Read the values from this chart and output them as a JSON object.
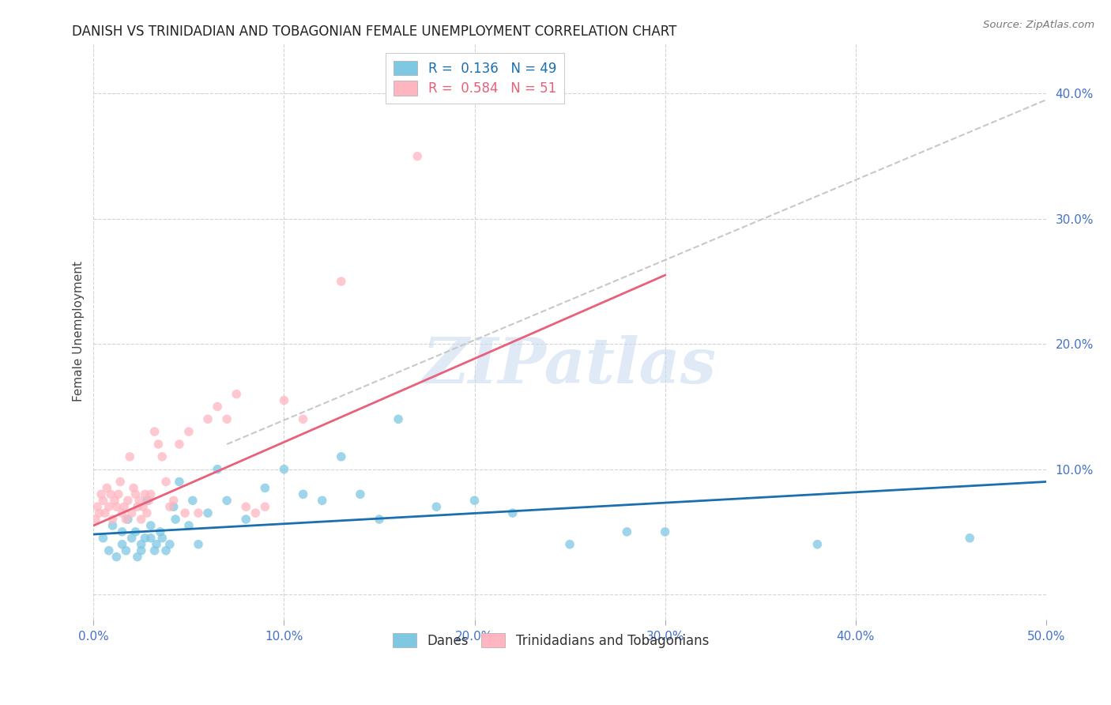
{
  "title": "DANISH VS TRINIDADIAN AND TOBAGONIAN FEMALE UNEMPLOYMENT CORRELATION CHART",
  "source": "Source: ZipAtlas.com",
  "ylabel": "Female Unemployment",
  "xlim": [
    0.0,
    0.5
  ],
  "ylim": [
    -0.02,
    0.44
  ],
  "xticks": [
    0.0,
    0.1,
    0.2,
    0.3,
    0.4,
    0.5
  ],
  "yticks": [
    0.0,
    0.1,
    0.2,
    0.3,
    0.4
  ],
  "xtick_labels": [
    "0.0%",
    "10.0%",
    "20.0%",
    "30.0%",
    "40.0%",
    "50.0%"
  ],
  "ytick_labels": [
    "",
    "10.0%",
    "20.0%",
    "30.0%",
    "40.0%"
  ],
  "blue_color": "#7ec8e3",
  "pink_color": "#ffb6c1",
  "blue_line_color": "#1a6faf",
  "pink_line_color": "#e8607a",
  "dash_line_color": "#c8c8c8",
  "danes_scatter_x": [
    0.005,
    0.008,
    0.01,
    0.012,
    0.015,
    0.015,
    0.017,
    0.018,
    0.02,
    0.022,
    0.023,
    0.025,
    0.025,
    0.027,
    0.028,
    0.03,
    0.03,
    0.032,
    0.033,
    0.035,
    0.036,
    0.038,
    0.04,
    0.042,
    0.043,
    0.045,
    0.05,
    0.052,
    0.055,
    0.06,
    0.065,
    0.07,
    0.08,
    0.09,
    0.1,
    0.11,
    0.12,
    0.13,
    0.14,
    0.15,
    0.16,
    0.18,
    0.2,
    0.22,
    0.25,
    0.28,
    0.3,
    0.38,
    0.46
  ],
  "danes_scatter_y": [
    0.045,
    0.035,
    0.055,
    0.03,
    0.05,
    0.04,
    0.035,
    0.06,
    0.045,
    0.05,
    0.03,
    0.04,
    0.035,
    0.045,
    0.075,
    0.045,
    0.055,
    0.035,
    0.04,
    0.05,
    0.045,
    0.035,
    0.04,
    0.07,
    0.06,
    0.09,
    0.055,
    0.075,
    0.04,
    0.065,
    0.1,
    0.075,
    0.06,
    0.085,
    0.1,
    0.08,
    0.075,
    0.11,
    0.08,
    0.06,
    0.14,
    0.07,
    0.075,
    0.065,
    0.04,
    0.05,
    0.05,
    0.04,
    0.045
  ],
  "tnt_scatter_x": [
    0.001,
    0.002,
    0.003,
    0.004,
    0.005,
    0.006,
    0.007,
    0.008,
    0.009,
    0.01,
    0.011,
    0.012,
    0.013,
    0.014,
    0.015,
    0.016,
    0.017,
    0.018,
    0.019,
    0.02,
    0.021,
    0.022,
    0.023,
    0.024,
    0.025,
    0.026,
    0.027,
    0.028,
    0.029,
    0.03,
    0.032,
    0.034,
    0.036,
    0.038,
    0.04,
    0.042,
    0.045,
    0.048,
    0.05,
    0.055,
    0.06,
    0.065,
    0.07,
    0.075,
    0.08,
    0.085,
    0.09,
    0.1,
    0.11,
    0.13,
    0.17
  ],
  "tnt_scatter_y": [
    0.06,
    0.07,
    0.065,
    0.08,
    0.075,
    0.065,
    0.085,
    0.07,
    0.08,
    0.06,
    0.075,
    0.07,
    0.08,
    0.09,
    0.065,
    0.07,
    0.06,
    0.075,
    0.11,
    0.065,
    0.085,
    0.08,
    0.07,
    0.075,
    0.06,
    0.07,
    0.08,
    0.065,
    0.075,
    0.08,
    0.13,
    0.12,
    0.11,
    0.09,
    0.07,
    0.075,
    0.12,
    0.065,
    0.13,
    0.065,
    0.14,
    0.15,
    0.14,
    0.16,
    0.07,
    0.065,
    0.07,
    0.155,
    0.14,
    0.25,
    0.35
  ],
  "danes_line_x": [
    0.0,
    0.5
  ],
  "danes_line_y": [
    0.048,
    0.09
  ],
  "tnt_line_x": [
    0.0,
    0.3
  ],
  "tnt_line_y": [
    0.055,
    0.255
  ],
  "dash_line_x": [
    0.07,
    0.5
  ],
  "dash_line_y": [
    0.12,
    0.395
  ],
  "watermark_text": "ZIPatlas",
  "watermark_color": "#c8d8f0",
  "background_color": "#ffffff"
}
